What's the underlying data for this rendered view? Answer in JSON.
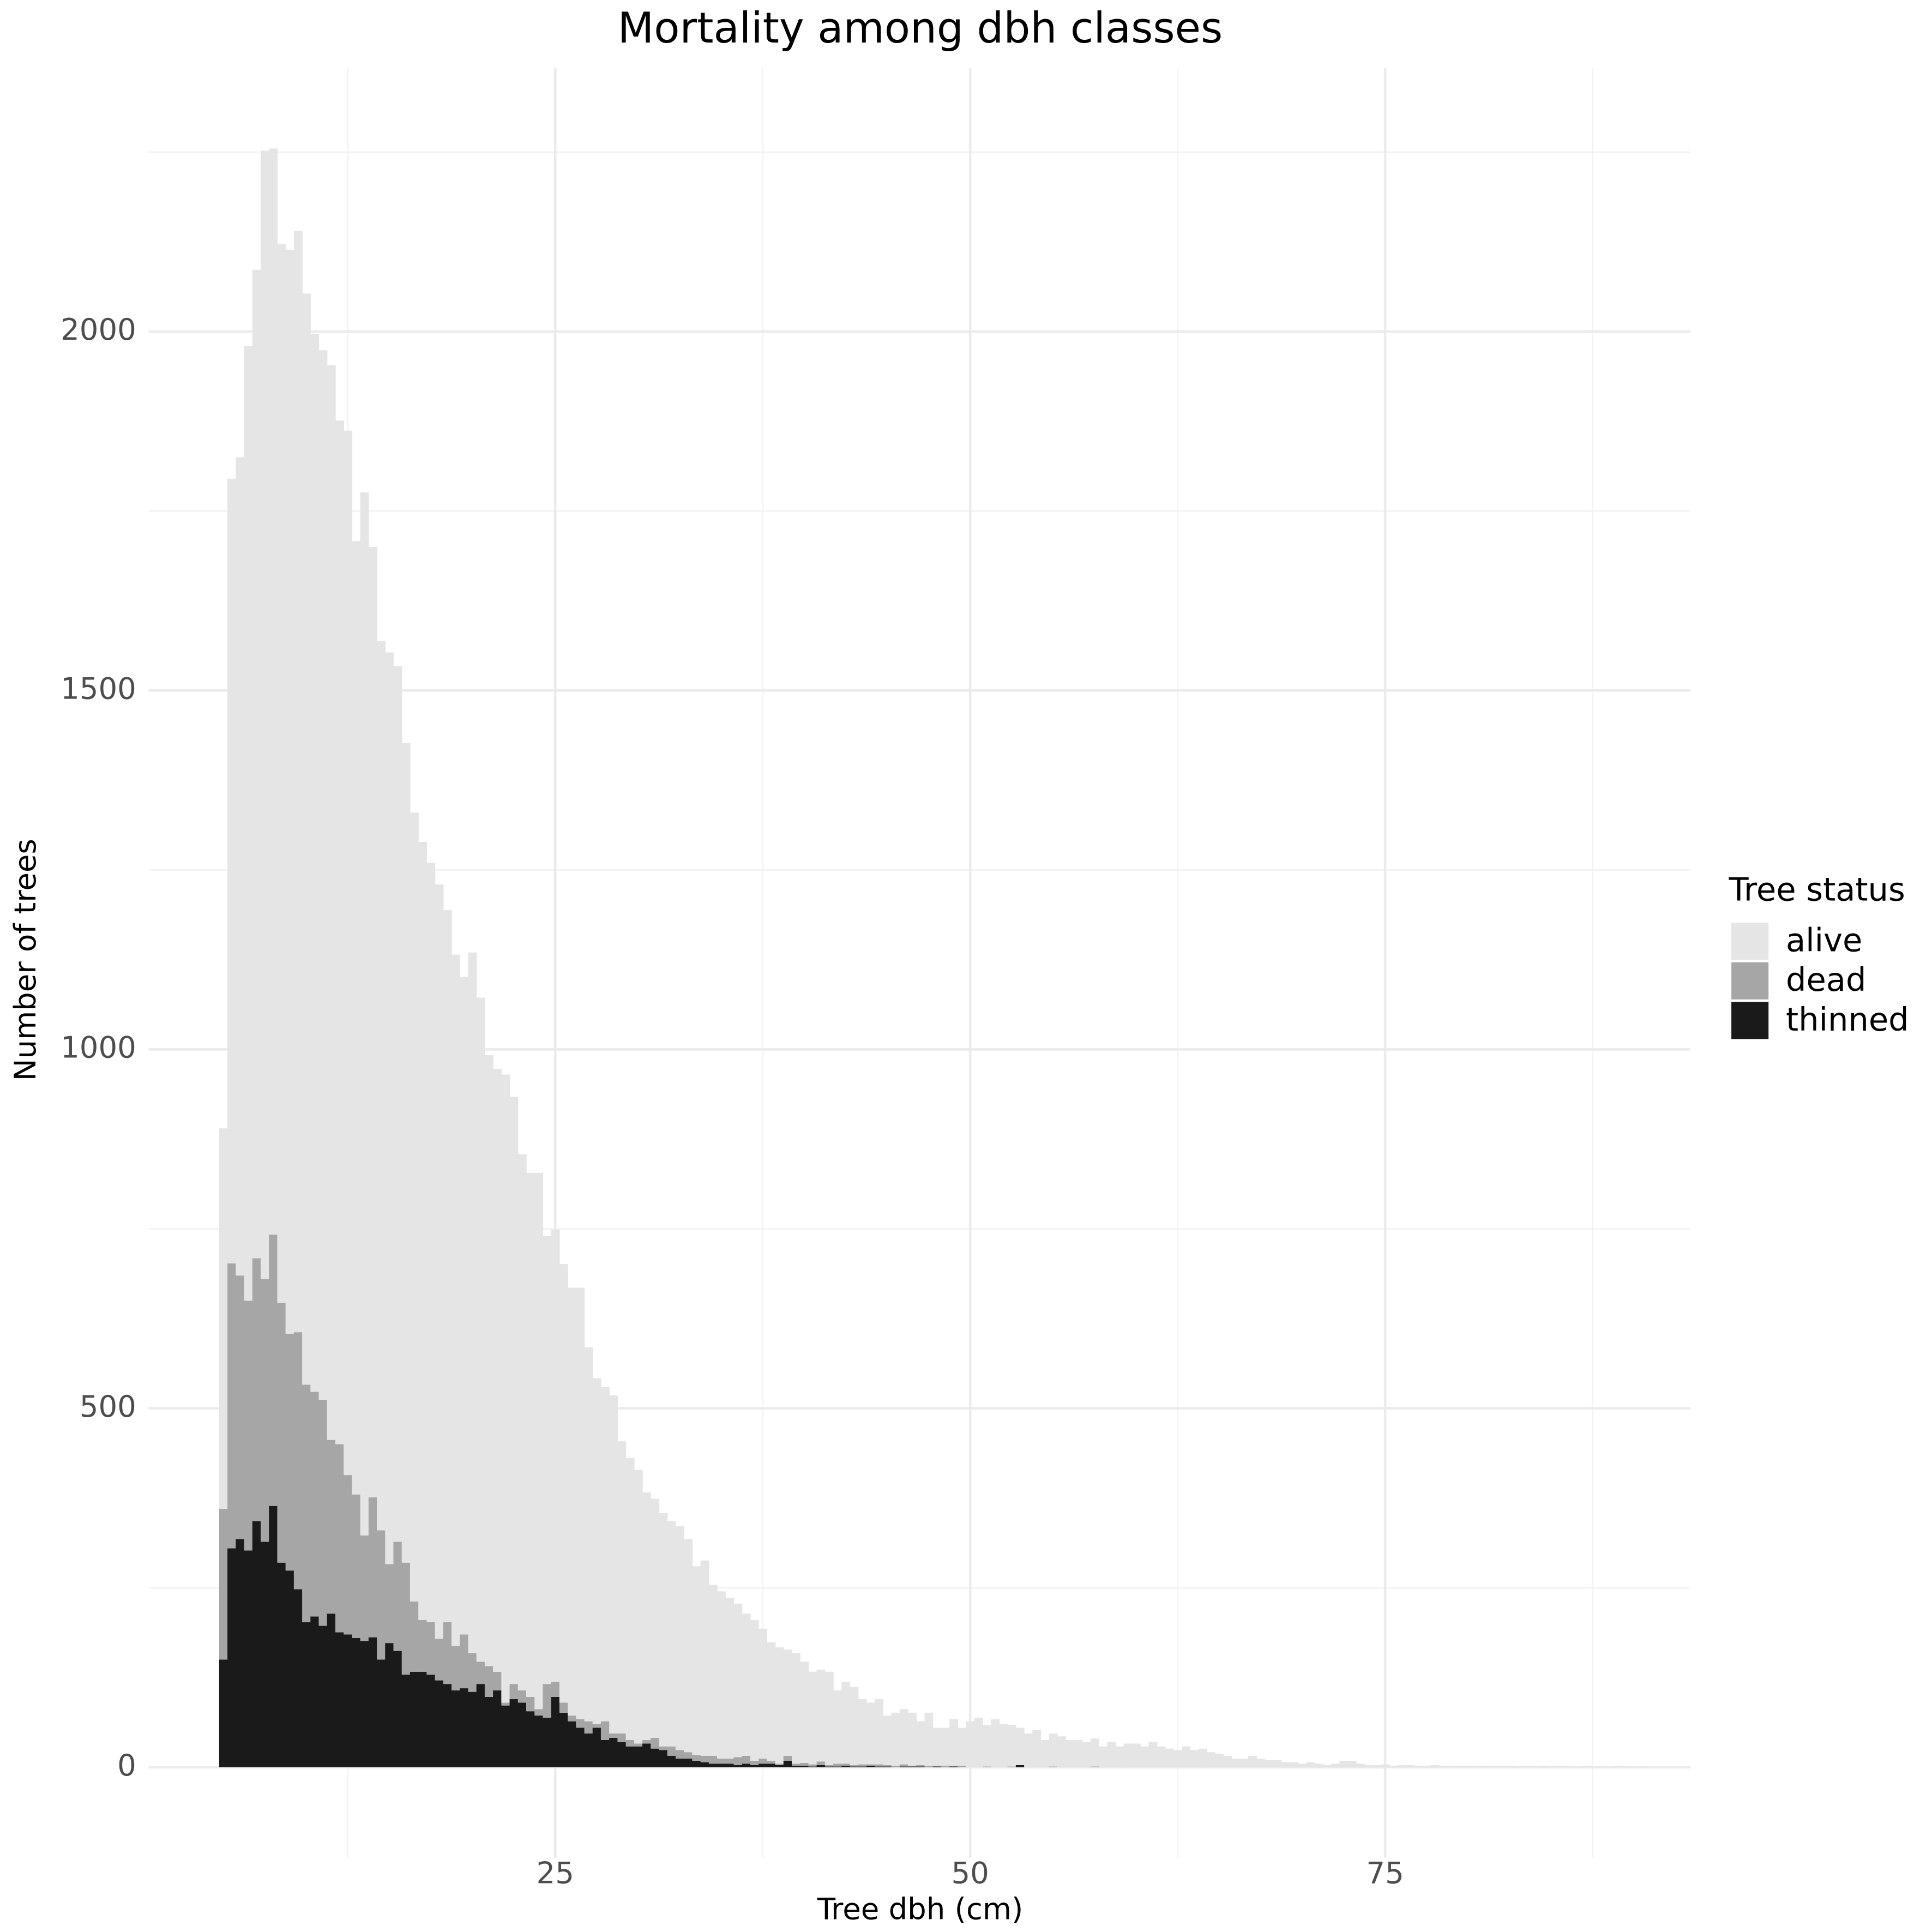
{
  "chart_data": {
    "type": "histogram",
    "title": "Mortality among dbh classes",
    "x_label": "Tree dbh (cm)",
    "y_label": "Number of trees",
    "legend_title": "Tree status",
    "legend": "right",
    "grid": true,
    "xlim": [
      0.5,
      93.4
    ],
    "ylim": [
      -126,
      2367
    ],
    "xticks": [
      25,
      50,
      75
    ],
    "yticks": [
      0,
      500,
      1000,
      1500,
      2000
    ],
    "xminorticks": [
      12.5,
      37.5,
      62.5,
      87.5
    ],
    "yminorticks": [
      250,
      750,
      1250,
      1750,
      2250
    ],
    "bins": [
      4.75,
      5.25,
      5.75,
      6.25,
      6.75,
      7.25,
      7.75,
      8.25,
      8.75,
      9.25,
      9.75,
      10.25,
      10.75,
      11.25,
      11.75,
      12.25,
      12.75,
      13.25,
      13.75,
      14.25,
      14.75,
      15.25,
      15.75,
      16.25,
      16.75,
      17.25,
      17.75,
      18.25,
      18.75,
      19.25,
      19.75,
      20.25,
      20.75,
      21.25,
      21.75,
      22.25,
      22.75,
      23.25,
      23.75,
      24.25,
      24.75,
      25.25,
      25.75,
      26.25,
      26.75,
      27.25,
      27.75,
      28.25,
      28.75,
      29.25,
      29.75,
      30.25,
      30.75,
      31.25,
      31.75,
      32.25,
      32.75,
      33.25,
      33.75,
      34.25,
      34.75,
      35.25,
      35.75,
      36.25,
      36.75,
      37.25,
      37.75,
      38.25,
      38.75,
      39.25,
      39.75,
      40.25,
      40.75,
      41.25,
      41.75,
      42.25,
      42.75,
      43.25,
      43.75,
      44.25,
      44.75,
      45.25,
      45.75,
      46.25,
      46.75,
      47.25,
      47.75,
      48.25,
      48.75,
      49.25,
      49.75,
      50.25,
      50.75,
      51.25,
      51.75,
      52.25,
      52.75,
      53.25,
      53.75,
      54.25,
      54.75,
      55.25,
      55.75,
      56.25,
      56.75,
      57.25,
      57.75,
      58.25,
      58.75,
      59.25,
      59.75,
      60.25,
      60.75,
      61.25,
      61.75,
      62.25,
      62.75,
      63.25,
      63.75,
      64.25,
      64.75,
      65.25,
      65.75,
      66.25,
      66.75,
      67.25,
      67.75,
      68.25,
      68.75,
      69.25,
      69.75,
      70.25,
      70.75,
      71.25,
      71.75,
      72.25,
      72.75,
      73.25,
      73.75,
      74.25,
      74.75,
      75.25,
      75.75,
      76.25,
      76.75,
      77.25,
      77.75,
      78.25,
      78.75,
      79.25,
      79.75,
      80.25,
      80.75,
      81.25,
      81.75,
      82.25,
      82.75,
      83.25,
      83.75,
      84.25,
      84.75,
      85.25,
      85.75,
      86.25,
      86.75,
      87.25,
      87.75,
      88.25,
      88.75,
      89.25,
      89.75,
      90.25,
      90.75
    ],
    "series": [
      {
        "name": "alive",
        "color": "#e5e5e5",
        "values": [
          530,
          1093,
          1140,
          1330,
          1377,
          1572,
          1513,
          1475,
          1510,
          1534,
          1520,
          1474,
          1462,
          1497,
          1426,
          1455,
          1328,
          1453,
          1324,
          1239,
          1270,
          1220,
          1142,
          1099,
          1084,
          1058,
          1051,
          992,
          963,
          916,
          976,
          925,
          851,
          840,
          875,
          818,
          747,
          730,
          747,
          624,
          630,
          611,
          596,
          601,
          521,
          482,
          466,
          471,
          407,
          393,
          381,
          345,
          333,
          325,
          314,
          312,
          297,
          263,
          272,
          238,
          233,
          224,
          214,
          198,
          196,
          181,
          165,
          162,
          148,
          154,
          141,
          129,
          128,
          130,
          102,
          114,
          109,
          91,
          86,
          91,
          69,
          74,
          77,
          74,
          61,
          74,
          53,
          53,
          65,
          53,
          64,
          69,
          58,
          67,
          60,
          58,
          52,
          47,
          52,
          38,
          46,
          43,
          38,
          38,
          35,
          39,
          29,
          35,
          29,
          33,
          33,
          29,
          35,
          29,
          26,
          24,
          29,
          24,
          26,
          21,
          19,
          16,
          12,
          12,
          16,
          12,
          10,
          10,
          7,
          7,
          5,
          7,
          5,
          3,
          5,
          9,
          9,
          5,
          3,
          3,
          4,
          2,
          3,
          3,
          2,
          2,
          3,
          2,
          1,
          2,
          2,
          1,
          2,
          1,
          1,
          2,
          1,
          1,
          1,
          2,
          1,
          1,
          1,
          0,
          1,
          1,
          1,
          0,
          1,
          1,
          0,
          1
        ]
      },
      {
        "name": "dead",
        "color": "#a6a6a6",
        "values": [
          210,
          397,
          367,
          348,
          366,
          366,
          378,
          362,
          330,
          358,
          331,
          313,
          315,
          242,
          262,
          222,
          200,
          147,
          195,
          180,
          110,
          152,
          156,
          98,
          72,
          73,
          58,
          86,
          62,
          75,
          54,
          31,
          43,
          26,
          4,
          21,
          17,
          20,
          9,
          47,
          21,
          14,
          8,
          12,
          17,
          5,
          26,
          6,
          12,
          9,
          4,
          5,
          15,
          5,
          13,
          12,
          9,
          8,
          9,
          11,
          7,
          7,
          11,
          11,
          6,
          7,
          4,
          2,
          7,
          3,
          4,
          3,
          5,
          2,
          4,
          3,
          2,
          3,
          2,
          3,
          2,
          2,
          3,
          1,
          2,
          2,
          1,
          2,
          1,
          2,
          0,
          0,
          1,
          0,
          0,
          1,
          0,
          0,
          0,
          0,
          1,
          0,
          0,
          0,
          0,
          1,
          0,
          0,
          0,
          0,
          0,
          0,
          0,
          0,
          0,
          0,
          0,
          0,
          0,
          0,
          0,
          0,
          0,
          0,
          0,
          0,
          0,
          0,
          0,
          0,
          0,
          0,
          0,
          0,
          0,
          0,
          0,
          0,
          0,
          0,
          0,
          0,
          0,
          0,
          0,
          0,
          0,
          0,
          0,
          0,
          0,
          0,
          0,
          0,
          0,
          0,
          0,
          0,
          0,
          0,
          0,
          0,
          0,
          0,
          0,
          0,
          0,
          0,
          0,
          0,
          0,
          0
        ]
      },
      {
        "name": "thinned",
        "color": "#1a1a1a",
        "values": [
          150,
          305,
          318,
          302,
          343,
          314,
          364,
          285,
          274,
          248,
          202,
          210,
          197,
          214,
          188,
          185,
          180,
          176,
          181,
          150,
          173,
          162,
          129,
          133,
          133,
          129,
          121,
          116,
          107,
          110,
          105,
          116,
          98,
          107,
          86,
          95,
          90,
          78,
          72,
          69,
          98,
          76,
          64,
          55,
          47,
          55,
          38,
          41,
          35,
          29,
          29,
          33,
          26,
          24,
          16,
          12,
          12,
          9,
          7,
          5,
          5,
          5,
          3,
          5,
          3,
          5,
          5,
          3,
          9,
          2,
          2,
          1,
          3,
          1,
          1,
          2,
          1,
          1,
          2,
          1,
          1,
          0,
          1,
          1,
          1,
          0,
          1,
          0,
          1,
          0,
          0,
          0,
          0,
          0,
          0,
          0,
          3,
          0,
          0,
          0,
          0,
          0,
          0,
          0,
          0,
          0,
          0,
          0,
          0,
          0,
          0,
          0,
          0,
          0,
          0,
          0,
          0,
          0,
          0,
          0,
          0,
          0,
          0,
          0,
          0,
          0,
          0,
          0,
          0,
          0,
          0,
          0,
          0,
          0,
          0,
          0,
          0,
          0,
          0,
          0,
          0,
          0,
          0,
          0,
          0,
          0,
          0,
          0,
          0,
          0,
          0,
          0,
          0,
          0,
          0,
          0,
          0,
          0,
          0,
          0,
          0,
          0,
          0,
          0,
          0,
          0,
          0,
          0,
          0,
          0,
          0,
          0
        ]
      }
    ]
  }
}
